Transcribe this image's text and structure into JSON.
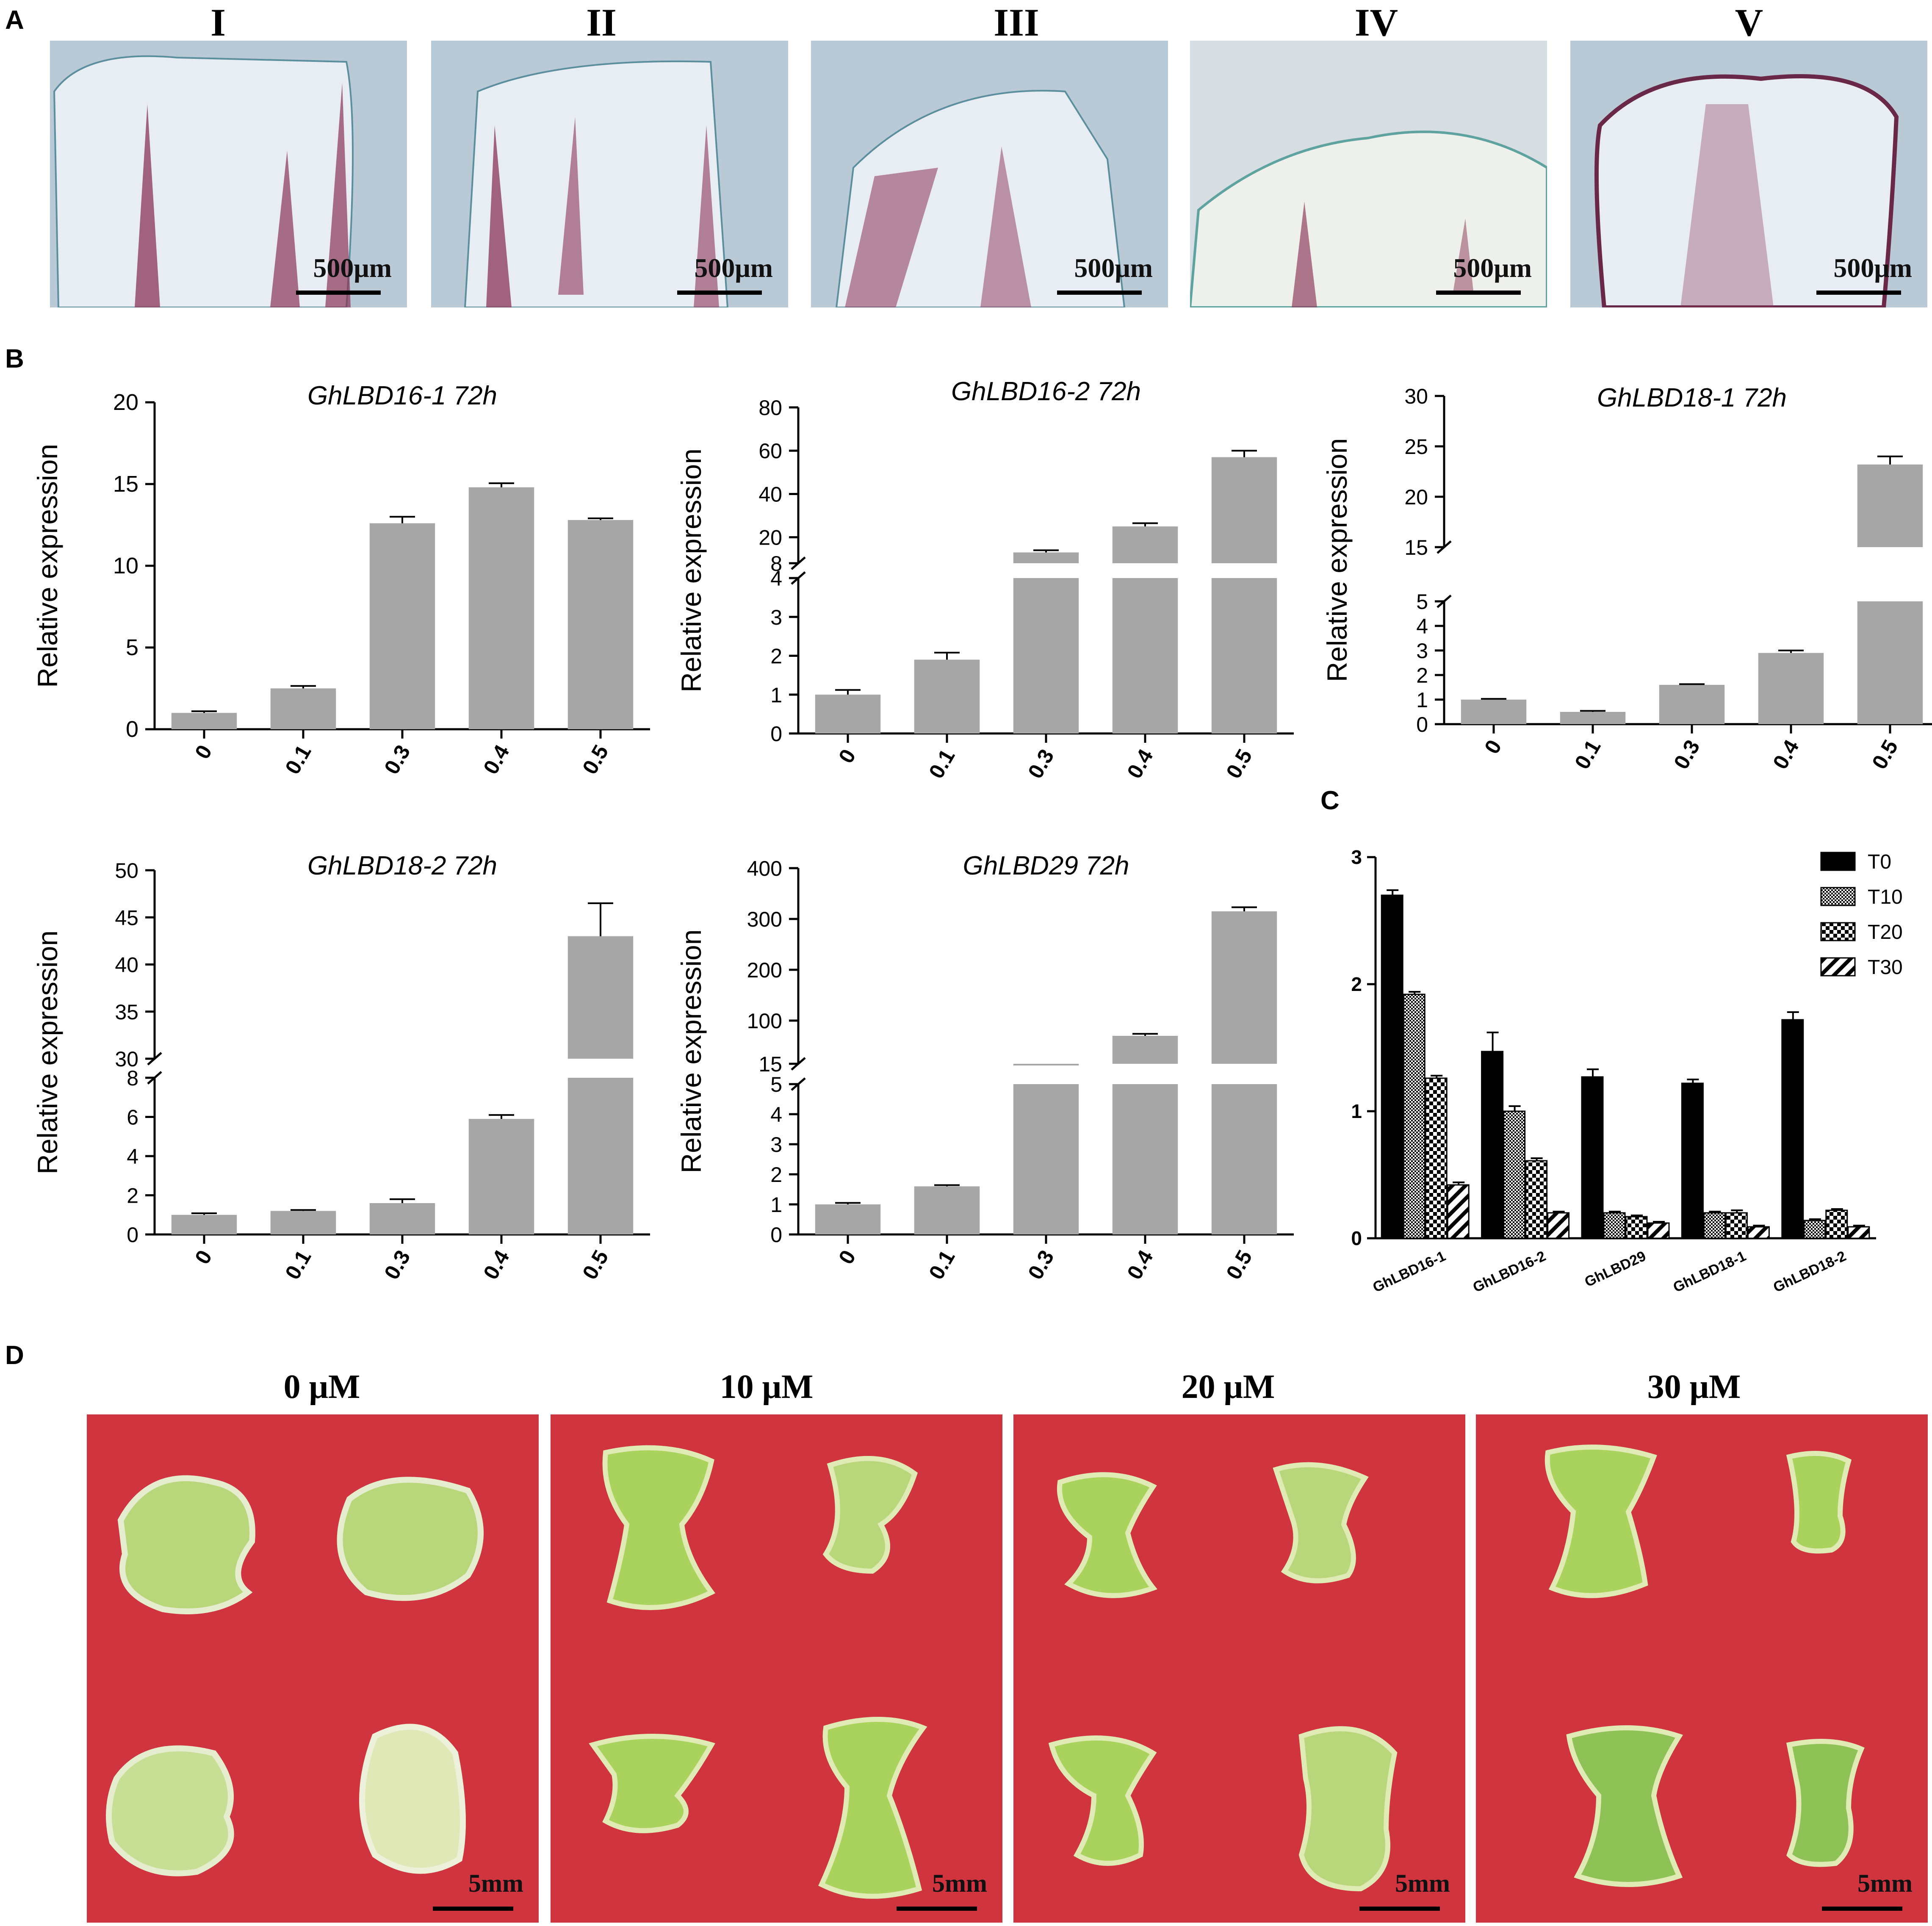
{
  "panels": {
    "A": {
      "letter": "A",
      "labels": [
        "I",
        "II",
        "III",
        "IV",
        "V"
      ],
      "scale": "500μm"
    },
    "B": {
      "letter": "B"
    },
    "C": {
      "letter": "C"
    },
    "D": {
      "letter": "D",
      "labels": [
        "0 μM",
        "10 μM",
        "20 μM",
        "30 μM"
      ],
      "scale": "5mm"
    }
  },
  "colors": {
    "bar_gray": "#a6a6a6",
    "tissue_bg": "#b9c9d6",
    "tissue_stain": "#7a2a4a",
    "cloth_red": "#d0343f",
    "callus_green": "#b7d77a"
  },
  "chart_data": [
    {
      "type": "bar",
      "title": "GhLBD16-1 72h",
      "xlabel": "",
      "ylabel": "Relative expression",
      "categories": [
        "0",
        "0.1",
        "0.3",
        "0.4",
        "0.5"
      ],
      "values": [
        1.0,
        2.5,
        12.6,
        14.8,
        12.8
      ],
      "errors": [
        0.1,
        0.15,
        0.4,
        0.25,
        0.1
      ],
      "yticks": [
        "0",
        "5",
        "10",
        "15",
        "20"
      ],
      "ylim": [
        0,
        20
      ],
      "axis_break": null
    },
    {
      "type": "bar",
      "title": "GhLBD16-2 72h",
      "xlabel": "",
      "ylabel": "Relative expression",
      "categories": [
        "0",
        "0.1",
        "0.3",
        "0.4",
        "0.5"
      ],
      "values": [
        1.0,
        1.9,
        13,
        25,
        57
      ],
      "errors": [
        0.12,
        0.18,
        1,
        1.5,
        3
      ],
      "lower_ticks": [
        "0",
        "1",
        "2",
        "3",
        "4"
      ],
      "lower_range": [
        0,
        4
      ],
      "upper_ticks": [
        "8",
        "20",
        "40",
        "60",
        "80"
      ],
      "upper_range": [
        8,
        80
      ]
    },
    {
      "type": "bar",
      "title": "GhLBD18-1 72h",
      "xlabel": "",
      "ylabel": "Relative expression",
      "categories": [
        "0",
        "0.1",
        "0.3",
        "0.4",
        "0.5"
      ],
      "values": [
        1.0,
        0.5,
        1.6,
        2.9,
        23.2
      ],
      "errors": [
        0.03,
        0.04,
        0.03,
        0.1,
        0.8
      ],
      "lower_ticks": [
        "0",
        "1",
        "2",
        "3",
        "4",
        "5"
      ],
      "lower_range": [
        0,
        5
      ],
      "upper_ticks": [
        "15",
        "20",
        "25",
        "30"
      ],
      "upper_range": [
        15,
        30
      ]
    },
    {
      "type": "bar",
      "title": "GhLBD18-2 72h",
      "xlabel": "",
      "ylabel": "Relative expression",
      "categories": [
        "0",
        "0.1",
        "0.3",
        "0.4",
        "0.5"
      ],
      "values": [
        1.0,
        1.2,
        1.6,
        5.9,
        43
      ],
      "errors": [
        0.08,
        0.05,
        0.2,
        0.2,
        3.5
      ],
      "lower_ticks": [
        "0",
        "2",
        "4",
        "6",
        "8"
      ],
      "lower_range": [
        0,
        8
      ],
      "upper_ticks": [
        "30",
        "35",
        "40",
        "45",
        "50"
      ],
      "upper_range": [
        30,
        50
      ]
    },
    {
      "type": "bar",
      "title": "GhLBD29 72h",
      "xlabel": "",
      "ylabel": "Relative expression",
      "categories": [
        "0",
        "0.1",
        "0.3",
        "0.4",
        "0.5"
      ],
      "values": [
        1.0,
        1.6,
        15,
        70,
        315
      ],
      "errors": [
        0.05,
        0.04,
        0,
        4,
        8
      ],
      "lower_ticks": [
        "0",
        "1",
        "2",
        "3",
        "4",
        "5"
      ],
      "lower_range": [
        0,
        5
      ],
      "upper_ticks": [
        "15",
        "100",
        "200",
        "300",
        "400"
      ],
      "upper_range": [
        15,
        400
      ]
    },
    {
      "type": "bar",
      "title": "",
      "xlabel": "",
      "ylabel": "",
      "categories": [
        "GhLBD16-1",
        "GhLBD16-2",
        "GhLBD29",
        "GhLBD18-1",
        "GhLBD18-2"
      ],
      "ylim": [
        0,
        3
      ],
      "yticks": [
        "0",
        "1",
        "2",
        "3"
      ],
      "series": [
        {
          "name": "T0",
          "values": [
            2.7,
            1.47,
            1.27,
            1.22,
            1.72
          ],
          "errors": [
            0.04,
            0.15,
            0.06,
            0.03,
            0.06
          ]
        },
        {
          "name": "T10",
          "values": [
            1.92,
            1.0,
            0.2,
            0.2,
            0.14
          ],
          "errors": [
            0.02,
            0.04,
            0.01,
            0.01,
            0.01
          ]
        },
        {
          "name": "T20",
          "values": [
            1.26,
            0.61,
            0.17,
            0.2,
            0.22
          ],
          "errors": [
            0.02,
            0.02,
            0.01,
            0.02,
            0.01
          ]
        },
        {
          "name": "T30",
          "values": [
            0.42,
            0.2,
            0.12,
            0.09,
            0.09
          ],
          "errors": [
            0.02,
            0.01,
            0.01,
            0.01,
            0.01
          ]
        }
      ]
    }
  ]
}
